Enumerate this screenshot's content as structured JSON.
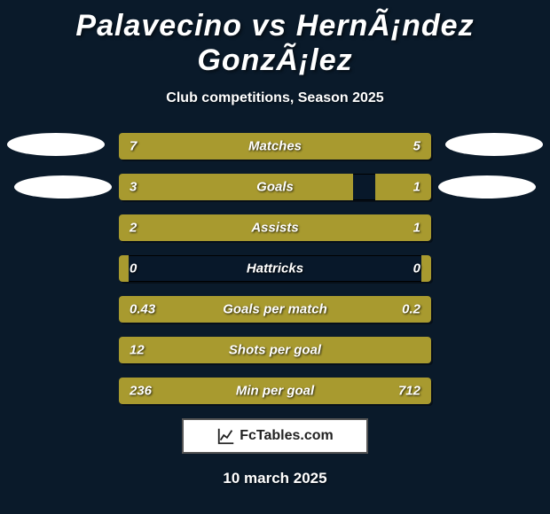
{
  "header": {
    "title": "Palavecino vs HernÃ¡ndez GonzÃ¡lez",
    "subtitle": "Club competitions, Season 2025"
  },
  "colors": {
    "background": "#0a1a2a",
    "bar_track": "#08182a",
    "bar_fill": "#a89a2f",
    "text": "#ffffff"
  },
  "stats": [
    {
      "label": "Matches",
      "left_value": "7",
      "right_value": "5",
      "left_pct": 66,
      "right_pct": 34
    },
    {
      "label": "Goals",
      "left_value": "3",
      "right_value": "1",
      "left_pct": 75,
      "right_pct": 18
    },
    {
      "label": "Assists",
      "left_value": "2",
      "right_value": "1",
      "left_pct": 66,
      "right_pct": 34
    },
    {
      "label": "Hattricks",
      "left_value": "0",
      "right_value": "0",
      "left_pct": 3,
      "right_pct": 3
    },
    {
      "label": "Goals per match",
      "left_value": "0.43",
      "right_value": "0.2",
      "left_pct": 66,
      "right_pct": 34
    },
    {
      "label": "Shots per goal",
      "left_value": "12",
      "right_value": "",
      "left_pct": 100,
      "right_pct": 0
    },
    {
      "label": "Min per goal",
      "left_value": "236",
      "right_value": "712",
      "left_pct": 25,
      "right_pct": 75
    }
  ],
  "footer": {
    "brand": "FcTables.com",
    "date": "10 march 2025"
  }
}
